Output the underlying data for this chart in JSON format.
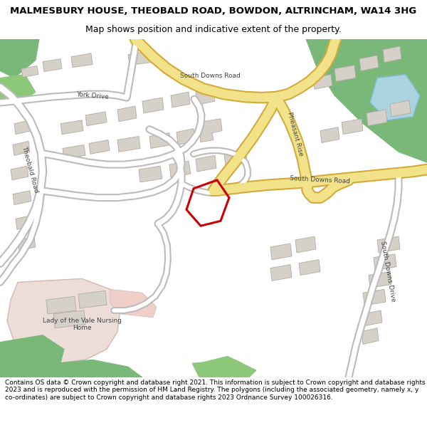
{
  "title_line1": "MALMESBURY HOUSE, THEOBALD ROAD, BOWDON, ALTRINCHAM, WA14 3HG",
  "title_line2": "Map shows position and indicative extent of the property.",
  "footer_text": "Contains OS data © Crown copyright and database right 2021. This information is subject to Crown copyright and database rights 2023 and is reproduced with the permission of HM Land Registry. The polygons (including the associated geometry, namely x, y co-ordinates) are subject to Crown copyright and database rights 2023 Ordnance Survey 100026316.",
  "map_bg": "#f5f4f1",
  "road_yellow": "#f2e38a",
  "road_yellow_border": "#d4aa3a",
  "road_white": "#ffffff",
  "road_gray_border": "#bbbbbb",
  "building_color": "#d5d0c8",
  "building_edge": "#b0aba3",
  "green_dark": "#7ab87a",
  "green_mid": "#8dc87a",
  "pink_area": "#edddd8",
  "pink_road": "#f0cfc8",
  "water_color": "#aad3df",
  "highlight_red": "#cc0000",
  "label_color": "#444444",
  "title_fontsize": 9.5,
  "subtitle_fontsize": 9,
  "label_fontsize": 6.5,
  "footer_fontsize": 6.5
}
